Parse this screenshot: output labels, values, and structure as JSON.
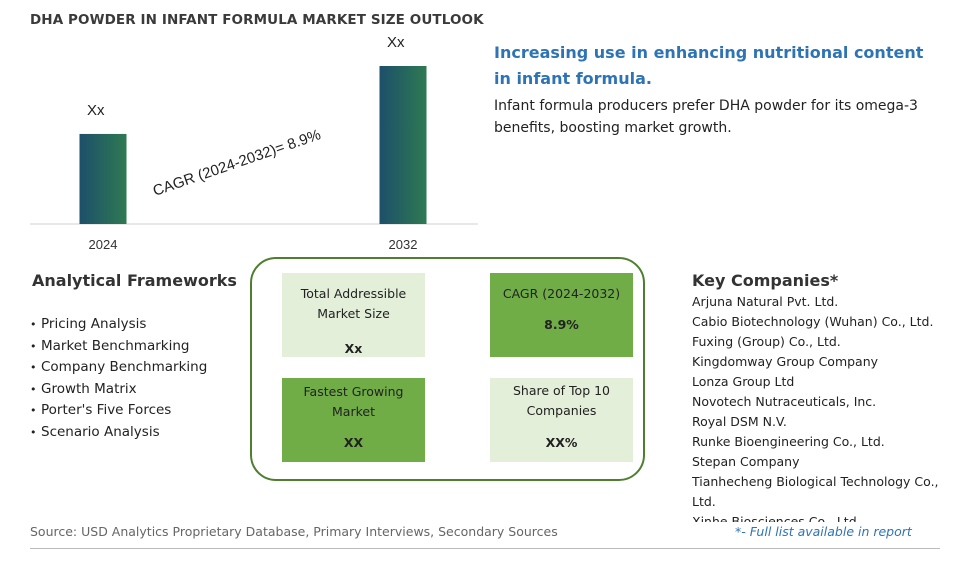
{
  "chart_data": {
    "type": "bar",
    "title": "DHA POWDER IN INFANT FORMULA MARKET SIZE OUTLOOK",
    "categories": [
      "2024",
      "2032"
    ],
    "values": [
      0.57,
      1.0
    ],
    "data_labels": [
      "Xx",
      "Xx"
    ],
    "annotation": "CAGR (2024-2032)=  8.9%",
    "colors": [
      "#1f5a5e",
      "#2b6f55"
    ],
    "grid": false
  },
  "headline": {
    "title": "Increasing use in enhancing nutritional content in infant formula.",
    "body": "Infant formula producers prefer DHA powder for its omega-3 benefits, boosting market growth."
  },
  "frameworks": {
    "title": "Analytical Frameworks",
    "items": [
      "Pricing Analysis",
      "Market Benchmarking",
      "Company Benchmarking",
      "Growth Matrix",
      "Porter's Five Forces",
      "Scenario Analysis"
    ]
  },
  "metrics": {
    "tiles": [
      {
        "label": "Total Addressible Market Size",
        "value": "Xx"
      },
      {
        "label": "CAGR (2024-2032)",
        "value": "8.9%"
      },
      {
        "label": "Fastest Growing Market",
        "value": "XX"
      },
      {
        "label": "Share of Top 10 Companies",
        "value": "XX%"
      }
    ],
    "colors": {
      "light": "#e3efd9",
      "dark": "#70ad47",
      "border": "#4e7f2e"
    }
  },
  "companies": {
    "title": "Key Companies*",
    "items": [
      "Arjuna Natural Pvt. Ltd.",
      "Cabio Biotechnology (Wuhan) Co., Ltd.",
      "Fuxing (Group) Co., Ltd.",
      "Kingdomway Group Company",
      "Lonza Group Ltd",
      "Novotech Nutraceuticals, Inc.",
      "Royal DSM N.V.",
      "Runke Bioengineering Co., Ltd.",
      "Stepan Company",
      "Tianhecheng Biological Technology Co., Ltd.",
      "Xinhe Biosciences Co., Ltd."
    ]
  },
  "footer": {
    "source": "Source: USD Analytics Proprietary Database, Primary Interviews, Secondary Sources",
    "full_list": "*- Full list available in report"
  }
}
